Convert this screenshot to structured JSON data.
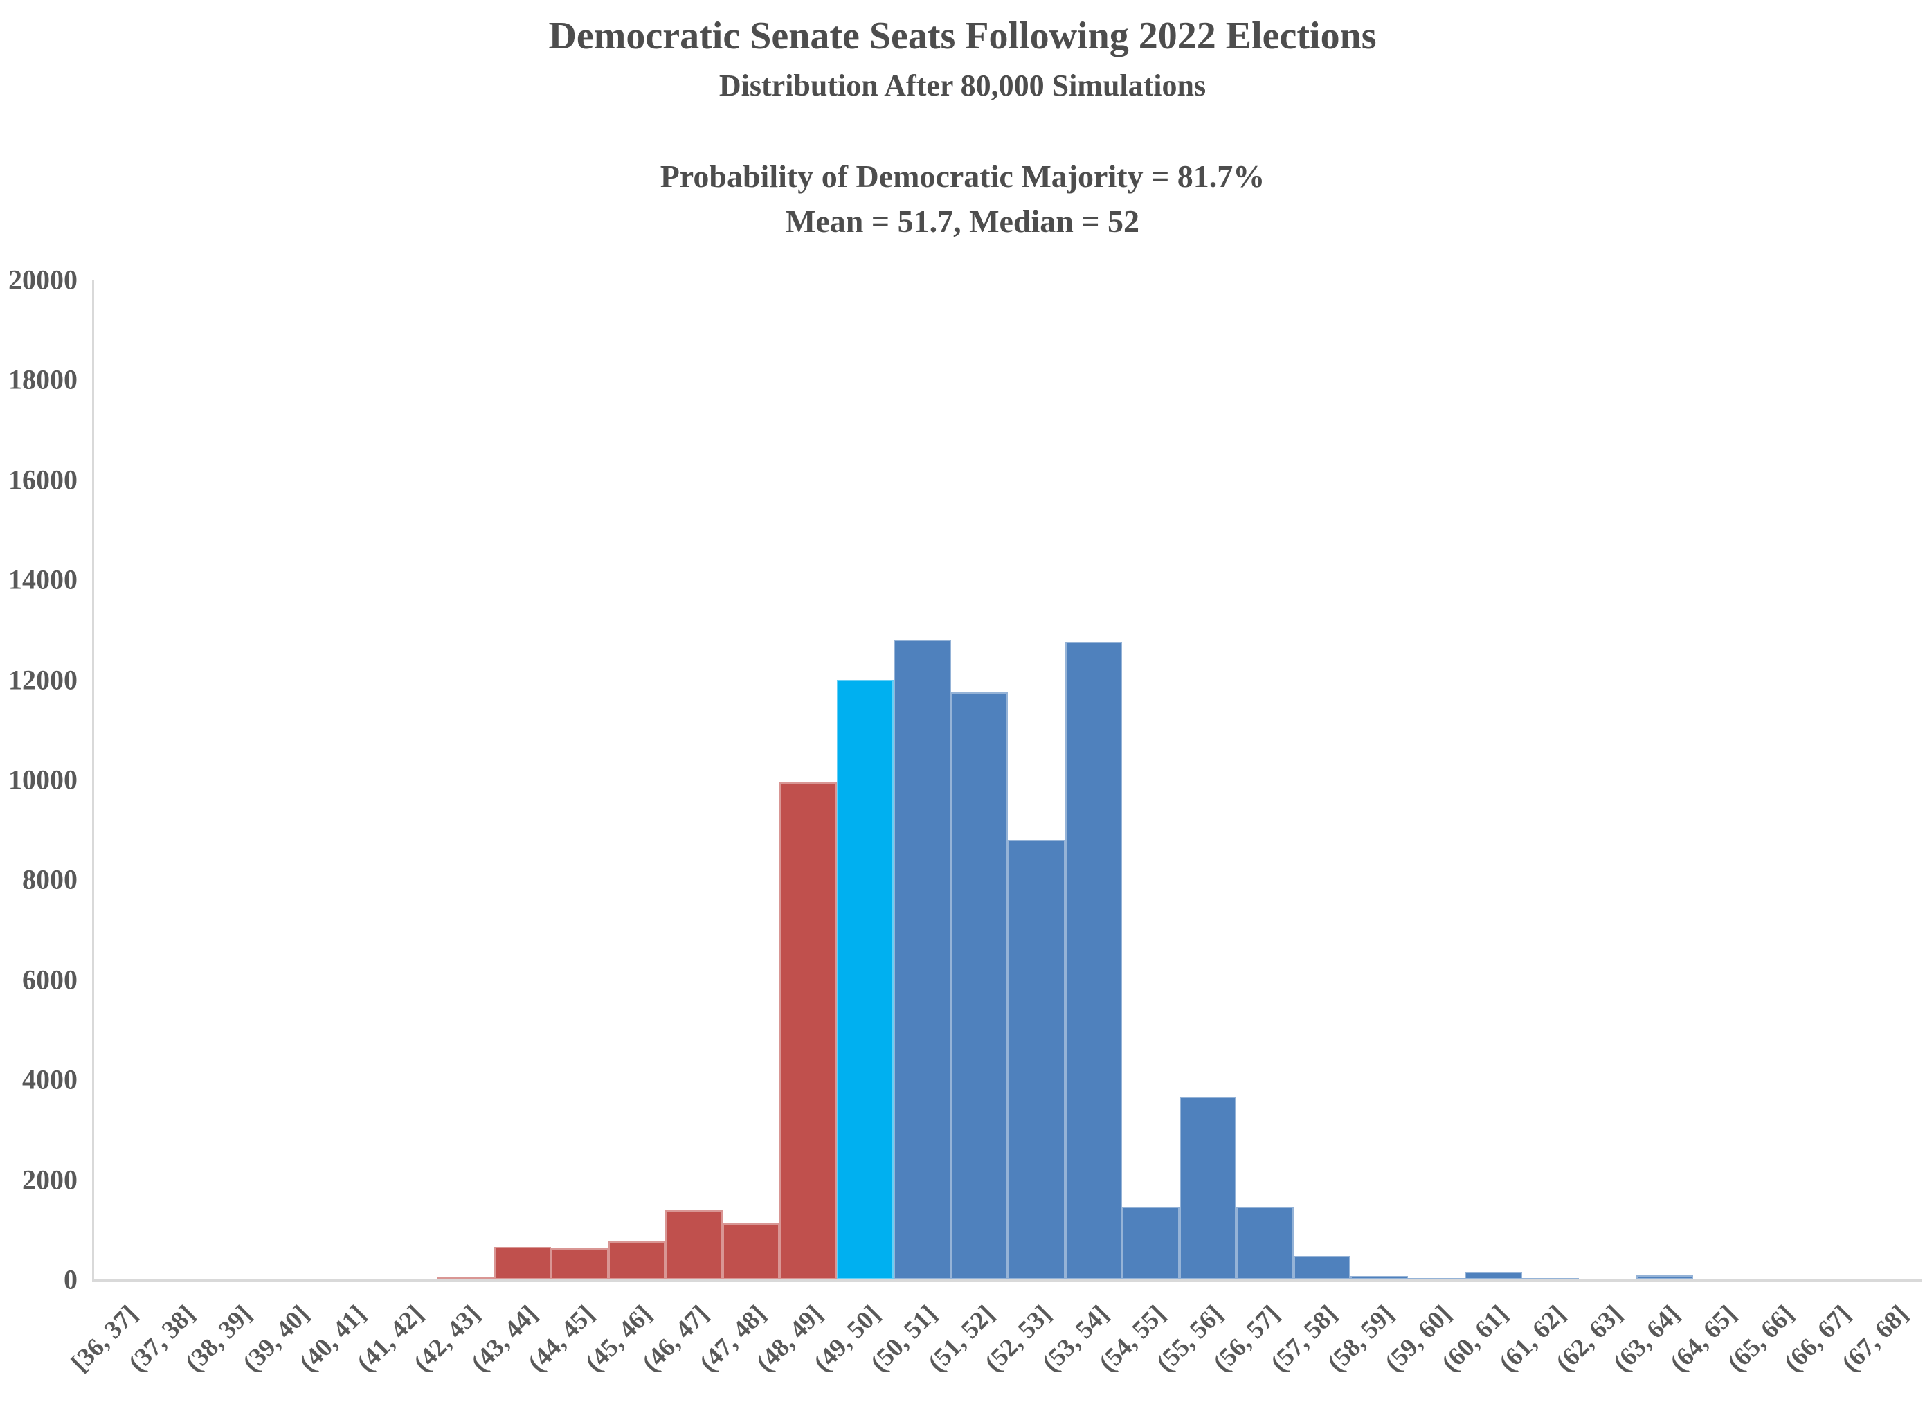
{
  "header": {
    "title": "Democratic Senate Seats Following 2022 Elections",
    "subtitle": "Distribution After 80,000 Simulations",
    "probability_line": "Probability of Democratic Majority = 81.7%",
    "mean_median_line": "Mean = 51.7, Median = 52"
  },
  "colors": {
    "republican_bar": "#C0504D",
    "tie_bar": "#00B0F0",
    "democrat_bar": "#4F81BD",
    "axis_line": "#D9D9D9",
    "tick_label_text": "#595959",
    "title_text": "#4D4D4D"
  },
  "chart_data": {
    "type": "bar",
    "title": "Democratic Senate Seats Following 2022 Elections",
    "subtitle": "Distribution After 80,000 Simulations",
    "annotations": [
      "Probability of Democratic Majority = 81.7%",
      "Mean = 51.7, Median = 52"
    ],
    "xlabel": "",
    "ylabel": "",
    "ylim": [
      0,
      20000
    ],
    "ytick_step": 2000,
    "grid": false,
    "legend": "none",
    "x_tick_rotation_deg": 45,
    "categories": [
      "[36, 37]",
      "(37, 38]",
      "(38, 39]",
      "(39, 40]",
      "(40, 41]",
      "(41, 42]",
      "(42, 43]",
      "(43, 44]",
      "(44, 45]",
      "(45, 46]",
      "(46, 47]",
      "(47, 48]",
      "(48, 49]",
      "(49, 50]",
      "(50, 51]",
      "(51, 52]",
      "(52, 53]",
      "(53, 54]",
      "(54, 55]",
      "(55, 56]",
      "(56, 57]",
      "(57, 58]",
      "(58, 59]",
      "(59, 60]",
      "(60, 61]",
      "(61, 62]",
      "(62, 63]",
      "(63, 64]",
      "(64, 65]",
      "(65, 66]",
      "(66, 67]",
      "(67, 68]"
    ],
    "values": [
      0,
      0,
      0,
      0,
      0,
      0,
      50,
      650,
      620,
      760,
      1380,
      1120,
      9950,
      12000,
      12800,
      11750,
      8800,
      12750,
      1450,
      3650,
      1450,
      470,
      70,
      25,
      150,
      25,
      0,
      80,
      0,
      0,
      0,
      0
    ],
    "bar_groups": [
      "republican",
      "republican",
      "republican",
      "republican",
      "republican",
      "republican",
      "republican",
      "republican",
      "republican",
      "republican",
      "republican",
      "republican",
      "republican",
      "tie",
      "democrat",
      "democrat",
      "democrat",
      "democrat",
      "democrat",
      "democrat",
      "democrat",
      "democrat",
      "democrat",
      "democrat",
      "democrat",
      "democrat",
      "democrat",
      "democrat",
      "democrat",
      "democrat",
      "democrat",
      "democrat"
    ]
  }
}
